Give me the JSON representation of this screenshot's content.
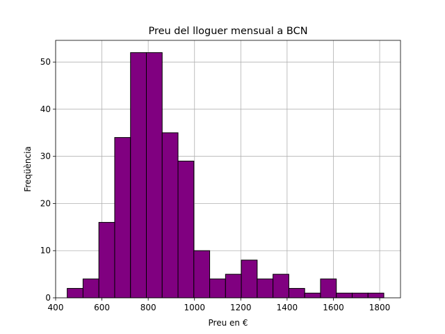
{
  "chart_data": {
    "type": "bar",
    "title": "Preu del lloguer mensual a BCN",
    "xlabel": "Preu en €",
    "ylabel": "Freqüència",
    "xlim": [
      400,
      1890
    ],
    "ylim": [
      0,
      54.6
    ],
    "xticks": [
      400,
      600,
      800,
      1000,
      1200,
      1400,
      1600,
      1800
    ],
    "yticks": [
      0,
      10,
      20,
      30,
      40,
      50
    ],
    "grid": true,
    "bar_color": "#800080",
    "edge_color": "#000000",
    "bins": [
      {
        "start": 450,
        "end": 518.4,
        "value": 2
      },
      {
        "start": 518.4,
        "end": 586.8,
        "value": 4
      },
      {
        "start": 586.8,
        "end": 655.2,
        "value": 16
      },
      {
        "start": 655.2,
        "end": 723.6,
        "value": 34
      },
      {
        "start": 723.6,
        "end": 792.0,
        "value": 52
      },
      {
        "start": 792.0,
        "end": 860.4,
        "value": 52
      },
      {
        "start": 860.4,
        "end": 928.8,
        "value": 35
      },
      {
        "start": 928.8,
        "end": 997.2,
        "value": 29
      },
      {
        "start": 997.2,
        "end": 1065.6,
        "value": 10
      },
      {
        "start": 1065.6,
        "end": 1134.0,
        "value": 4
      },
      {
        "start": 1134.0,
        "end": 1202.4,
        "value": 5
      },
      {
        "start": 1202.4,
        "end": 1270.8,
        "value": 8
      },
      {
        "start": 1270.8,
        "end": 1339.2,
        "value": 4
      },
      {
        "start": 1339.2,
        "end": 1407.6,
        "value": 5
      },
      {
        "start": 1407.6,
        "end": 1476.0,
        "value": 2
      },
      {
        "start": 1476.0,
        "end": 1544.4,
        "value": 1
      },
      {
        "start": 1544.4,
        "end": 1612.8,
        "value": 4
      },
      {
        "start": 1612.8,
        "end": 1681.2,
        "value": 1
      },
      {
        "start": 1681.2,
        "end": 1749.6,
        "value": 1
      },
      {
        "start": 1749.6,
        "end": 1818.0,
        "value": 1
      }
    ]
  }
}
